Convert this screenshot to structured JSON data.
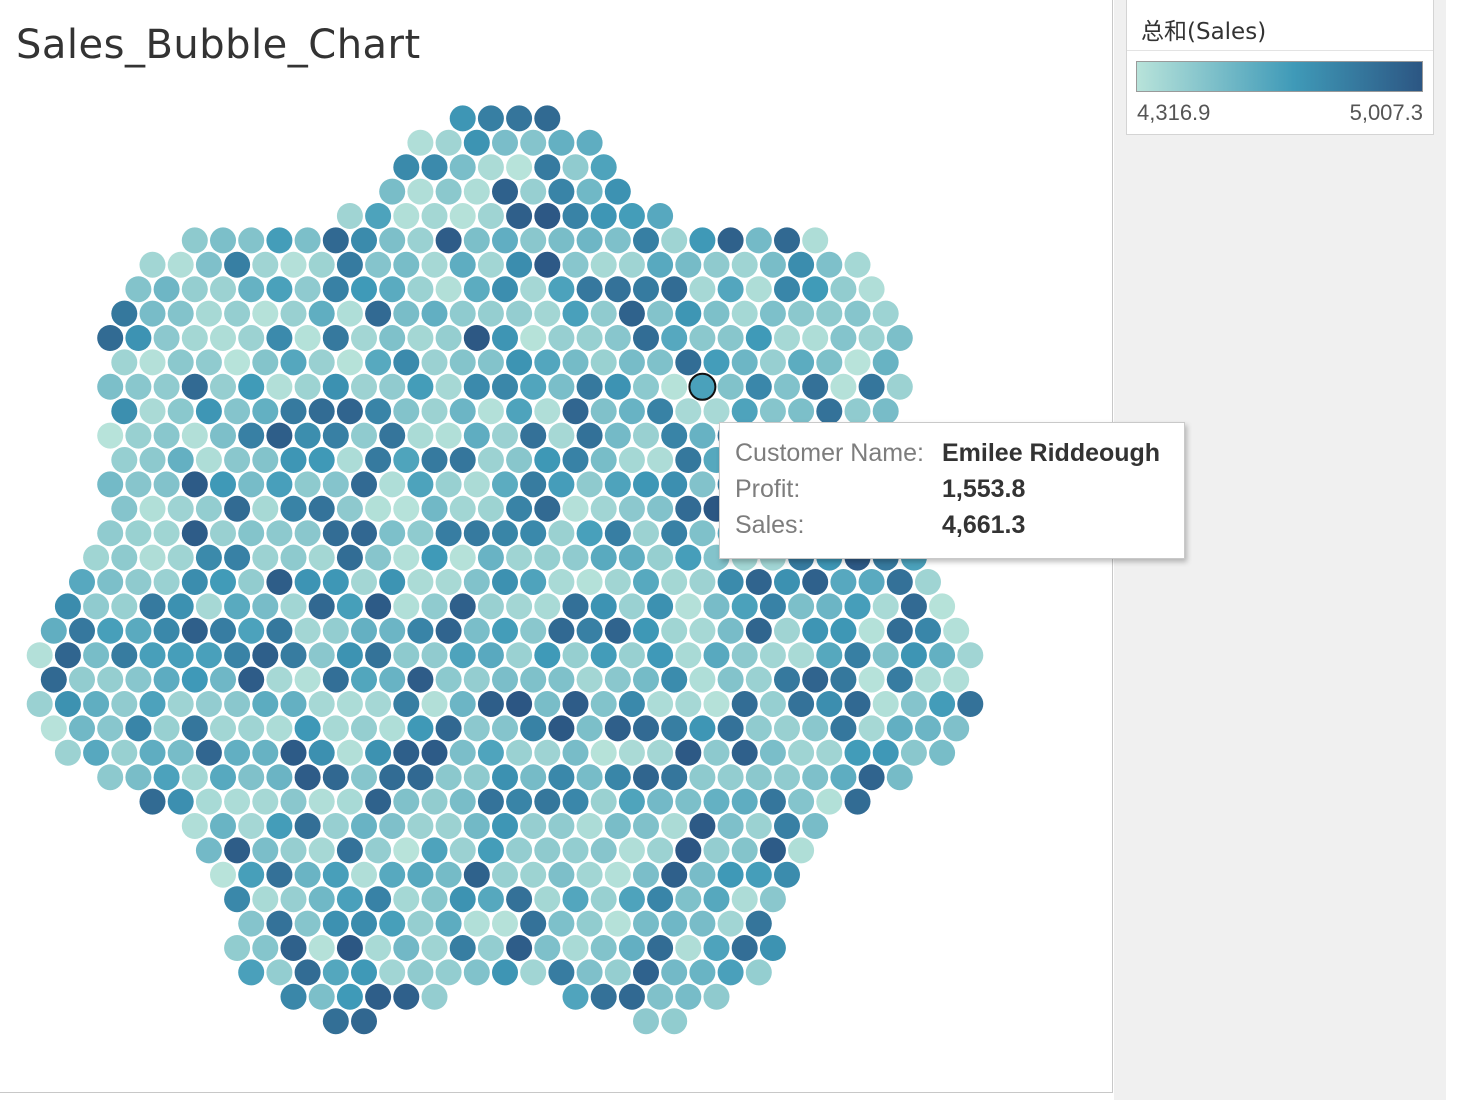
{
  "title": "Sales_Bubble_Chart",
  "legend": {
    "title": "总和(Sales)",
    "min_label": "4,316.9",
    "max_label": "5,007.3",
    "color_low": "#b8e3da",
    "color_mid": "#3f9ab8",
    "color_high": "#2c5683"
  },
  "tooltip": {
    "rows": [
      {
        "label": "Customer Name:",
        "value": "Emilee Riddeough"
      },
      {
        "label": "Profit:",
        "value": "1,553.8"
      },
      {
        "label": "Sales:",
        "value": "4,661.3"
      }
    ]
  },
  "chart_data": {
    "type": "scatter",
    "title": "Sales_Bubble_Chart",
    "encoding": "packed bubbles, one per customer, color = SUM(Sales)",
    "color_range": [
      4316.9,
      5007.3
    ],
    "highlighted": {
      "customer": "Emilee Riddeough",
      "profit": 1553.8,
      "sales": 4661.3
    }
  }
}
